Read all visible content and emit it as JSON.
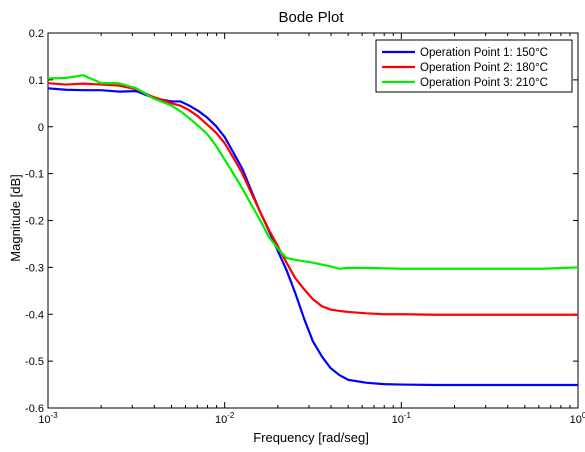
{
  "chart_data": {
    "type": "line",
    "title": "Bode Plot",
    "xlabel": "Frequency [rad/seg]",
    "ylabel": "Magnitude [dB]",
    "xscale": "log",
    "xlim": [
      0.001,
      1
    ],
    "ylim": [
      -0.6,
      0.2
    ],
    "yticks": [
      0.2,
      0.1,
      0,
      -0.1,
      -0.2,
      -0.3,
      -0.4,
      -0.5,
      -0.6
    ],
    "yticklabels": [
      "0.2",
      "0.1",
      "0",
      "-0.1",
      "-0.2",
      "-0.3",
      "-0.4",
      "-0.5",
      "-0.6"
    ],
    "xticks": [
      {
        "base": "10",
        "exp": "-3",
        "value": 0.001
      },
      {
        "base": "10",
        "exp": "-2",
        "value": 0.01
      },
      {
        "base": "10",
        "exp": "-1",
        "value": 0.1
      },
      {
        "base": "10",
        "exp": "0",
        "value": 1
      }
    ],
    "grid": false,
    "legend_position": "top-right",
    "series": [
      {
        "name": "Operation Point 1: 150°C",
        "color": "#0000ff",
        "points": [
          [
            0.001,
            0.082
          ],
          [
            0.00126,
            0.079
          ],
          [
            0.00158,
            0.078
          ],
          [
            0.002,
            0.078
          ],
          [
            0.00251,
            0.075
          ],
          [
            0.00316,
            0.076
          ],
          [
            0.00398,
            0.061
          ],
          [
            0.00501,
            0.054
          ],
          [
            0.00562,
            0.054
          ],
          [
            0.00631,
            0.045
          ],
          [
            0.00708,
            0.034
          ],
          [
            0.00794,
            0.02
          ],
          [
            0.00891,
            0.002
          ],
          [
            0.01,
            -0.022
          ],
          [
            0.0112,
            -0.055
          ],
          [
            0.0126,
            -0.09
          ],
          [
            0.0141,
            -0.135
          ],
          [
            0.0158,
            -0.18
          ],
          [
            0.0178,
            -0.222
          ],
          [
            0.02,
            -0.265
          ],
          [
            0.0224,
            -0.306
          ],
          [
            0.0251,
            -0.355
          ],
          [
            0.0282,
            -0.41
          ],
          [
            0.0316,
            -0.458
          ],
          [
            0.0355,
            -0.49
          ],
          [
            0.0398,
            -0.515
          ],
          [
            0.0447,
            -0.53
          ],
          [
            0.0501,
            -0.54
          ],
          [
            0.0631,
            -0.546
          ],
          [
            0.0794,
            -0.549
          ],
          [
            0.1,
            -0.55
          ],
          [
            0.158,
            -0.551
          ],
          [
            0.251,
            -0.551
          ],
          [
            0.398,
            -0.551
          ],
          [
            0.631,
            -0.551
          ],
          [
            1,
            -0.551
          ]
        ]
      },
      {
        "name": "Operation Point 2: 180°C",
        "color": "#ff0000",
        "points": [
          [
            0.001,
            0.093
          ],
          [
            0.00126,
            0.09
          ],
          [
            0.00158,
            0.092
          ],
          [
            0.002,
            0.09
          ],
          [
            0.00251,
            0.088
          ],
          [
            0.00316,
            0.08
          ],
          [
            0.00398,
            0.063
          ],
          [
            0.00501,
            0.05
          ],
          [
            0.00562,
            0.045
          ],
          [
            0.00631,
            0.035
          ],
          [
            0.00708,
            0.022
          ],
          [
            0.00794,
            0.005
          ],
          [
            0.00891,
            -0.012
          ],
          [
            0.01,
            -0.035
          ],
          [
            0.0112,
            -0.066
          ],
          [
            0.0126,
            -0.1
          ],
          [
            0.0141,
            -0.14
          ],
          [
            0.0158,
            -0.18
          ],
          [
            0.0178,
            -0.22
          ],
          [
            0.02,
            -0.255
          ],
          [
            0.0224,
            -0.29
          ],
          [
            0.0251,
            -0.323
          ],
          [
            0.0282,
            -0.347
          ],
          [
            0.0316,
            -0.368
          ],
          [
            0.0355,
            -0.383
          ],
          [
            0.0398,
            -0.39
          ],
          [
            0.0447,
            -0.393
          ],
          [
            0.0501,
            -0.395
          ],
          [
            0.0631,
            -0.398
          ],
          [
            0.0794,
            -0.4
          ],
          [
            0.1,
            -0.4
          ],
          [
            0.158,
            -0.401
          ],
          [
            0.251,
            -0.401
          ],
          [
            0.398,
            -0.401
          ],
          [
            0.631,
            -0.401
          ],
          [
            1,
            -0.401
          ]
        ]
      },
      {
        "name": "Operation Point 3: 210°C",
        "color": "#00ee00",
        "points": [
          [
            0.001,
            0.103
          ],
          [
            0.00126,
            0.104
          ],
          [
            0.00158,
            0.11
          ],
          [
            0.002,
            0.093
          ],
          [
            0.00251,
            0.093
          ],
          [
            0.00316,
            0.082
          ],
          [
            0.00398,
            0.06
          ],
          [
            0.00501,
            0.045
          ],
          [
            0.00562,
            0.033
          ],
          [
            0.00631,
            0.018
          ],
          [
            0.00708,
            0.002
          ],
          [
            0.00794,
            -0.015
          ],
          [
            0.00891,
            -0.04
          ],
          [
            0.01,
            -0.07
          ],
          [
            0.0112,
            -0.1
          ],
          [
            0.0126,
            -0.132
          ],
          [
            0.0141,
            -0.165
          ],
          [
            0.0158,
            -0.198
          ],
          [
            0.0178,
            -0.235
          ],
          [
            0.02,
            -0.26
          ],
          [
            0.0224,
            -0.28
          ],
          [
            0.0251,
            -0.284
          ],
          [
            0.0282,
            -0.287
          ],
          [
            0.0316,
            -0.29
          ],
          [
            0.0355,
            -0.294
          ],
          [
            0.0398,
            -0.298
          ],
          [
            0.0447,
            -0.303
          ],
          [
            0.0501,
            -0.301
          ],
          [
            0.0631,
            -0.301
          ],
          [
            0.0794,
            -0.302
          ],
          [
            0.1,
            -0.303
          ],
          [
            0.158,
            -0.303
          ],
          [
            0.251,
            -0.303
          ],
          [
            0.398,
            -0.303
          ],
          [
            0.631,
            -0.303
          ],
          [
            1,
            -0.3
          ]
        ]
      }
    ]
  }
}
